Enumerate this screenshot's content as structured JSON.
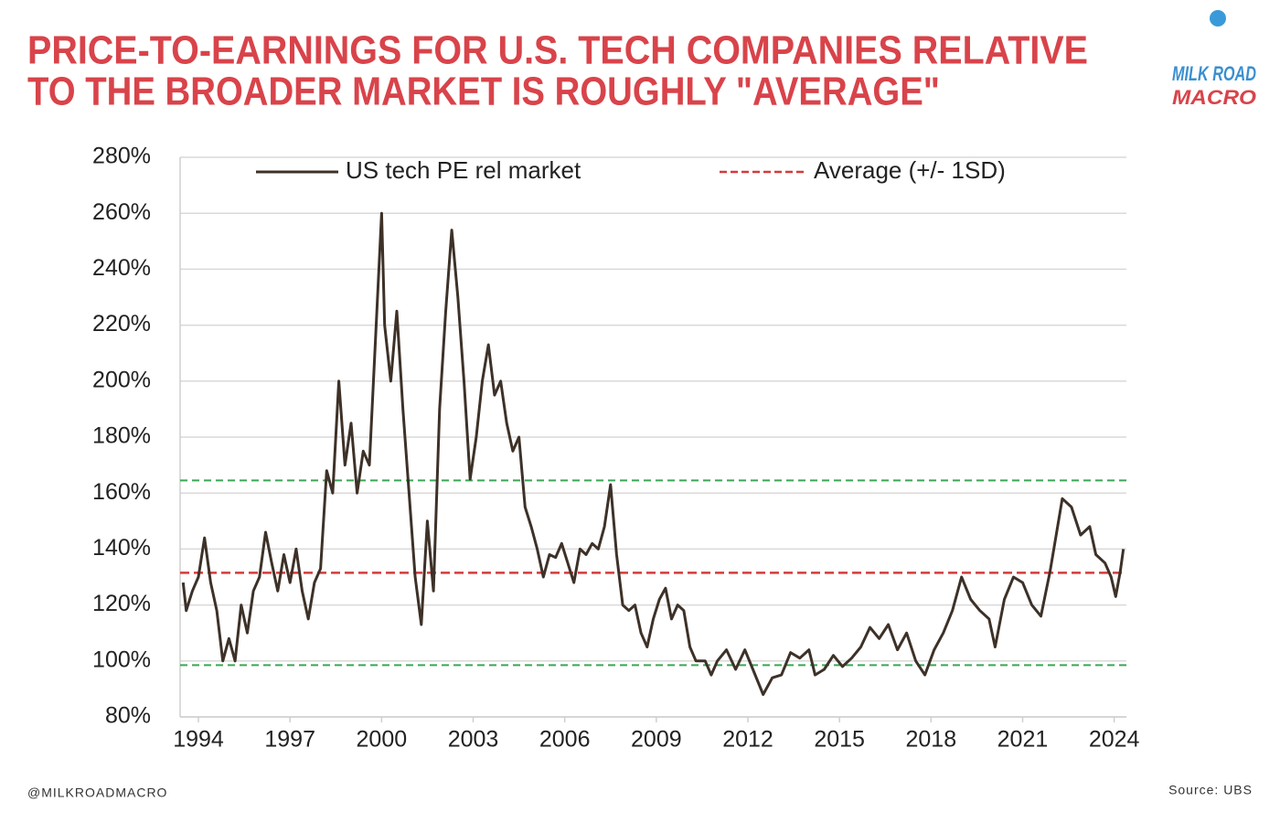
{
  "chart_data": {
    "type": "line",
    "title": [
      "PRICE-TO-EARNINGS FOR U.S. TECH COMPANIES RELATIVE",
      "TO THE BROADER MARKET IS ROUGHLY \"AVERAGE\""
    ],
    "x": [
      1993.5,
      1993.6,
      1993.8,
      1994.0,
      1994.2,
      1994.4,
      1994.6,
      1994.8,
      1995.0,
      1995.2,
      1995.4,
      1995.6,
      1995.8,
      1996.0,
      1996.2,
      1996.4,
      1996.6,
      1996.8,
      1997.0,
      1997.2,
      1997.4,
      1997.6,
      1997.8,
      1998.0,
      1998.2,
      1998.4,
      1998.6,
      1998.8,
      1999.0,
      1999.2,
      1999.4,
      1999.6,
      1999.8,
      2000.0,
      2000.1,
      2000.3,
      2000.5,
      2000.7,
      2000.9,
      2001.1,
      2001.3,
      2001.5,
      2001.7,
      2001.9,
      2002.1,
      2002.3,
      2002.5,
      2002.7,
      2002.9,
      2003.1,
      2003.3,
      2003.5,
      2003.7,
      2003.9,
      2004.1,
      2004.3,
      2004.5,
      2004.7,
      2004.9,
      2005.1,
      2005.3,
      2005.5,
      2005.7,
      2005.9,
      2006.1,
      2006.3,
      2006.5,
      2006.7,
      2006.9,
      2007.1,
      2007.3,
      2007.5,
      2007.7,
      2007.9,
      2008.1,
      2008.3,
      2008.5,
      2008.7,
      2008.9,
      2009.1,
      2009.3,
      2009.5,
      2009.7,
      2009.9,
      2010.1,
      2010.3,
      2010.6,
      2010.8,
      2011.0,
      2011.3,
      2011.6,
      2011.9,
      2012.2,
      2012.5,
      2012.8,
      2013.1,
      2013.4,
      2013.7,
      2014.0,
      2014.2,
      2014.5,
      2014.8,
      2015.1,
      2015.4,
      2015.7,
      2016.0,
      2016.3,
      2016.6,
      2016.9,
      2017.2,
      2017.5,
      2017.8,
      2018.1,
      2018.4,
      2018.7,
      2019.0,
      2019.3,
      2019.6,
      2019.9,
      2020.1,
      2020.4,
      2020.7,
      2021.0,
      2021.3,
      2021.6,
      2021.9,
      2022.1,
      2022.3,
      2022.6,
      2022.9,
      2023.2,
      2023.4,
      2023.7,
      2023.9,
      2024.05,
      2024.2,
      2024.3
    ],
    "series": [
      {
        "name": "US tech PE rel market",
        "color": "#3d3128",
        "values": [
          128,
          118,
          125,
          130,
          144,
          128,
          118,
          100,
          108,
          100,
          120,
          110,
          125,
          130,
          146,
          135,
          125,
          138,
          128,
          140,
          125,
          115,
          128,
          133,
          168,
          160,
          200,
          170,
          185,
          160,
          175,
          170,
          215,
          260,
          220,
          200,
          225,
          190,
          160,
          130,
          113,
          150,
          125,
          190,
          225,
          254,
          230,
          200,
          165,
          180,
          200,
          213,
          195,
          200,
          185,
          175,
          180,
          155,
          148,
          140,
          130,
          138,
          137,
          142,
          135,
          128,
          140,
          138,
          142,
          140,
          148,
          163,
          138,
          120,
          118,
          120,
          110,
          105,
          115,
          122,
          126,
          115,
          120,
          118,
          105,
          100,
          100,
          95,
          100,
          104,
          97,
          104,
          96,
          88,
          94,
          95,
          103,
          101,
          104,
          95,
          97,
          102,
          98,
          101,
          105,
          112,
          108,
          113,
          104,
          110,
          100,
          95,
          104,
          110,
          118,
          130,
          122,
          118,
          115,
          105,
          122,
          130,
          128,
          120,
          116,
          132,
          145,
          158,
          155,
          145,
          148,
          138,
          135,
          130,
          123,
          132,
          140
        ]
      }
    ],
    "reference": {
      "name": "Average (+/- 1SD)",
      "color": "#d63a3a",
      "average": 131.5,
      "band_color": "#3aa655",
      "band": [
        98.5,
        164.5
      ]
    },
    "xlim": [
      1993.4,
      2024.4
    ],
    "xticks": [
      1994,
      1997,
      2000,
      2003,
      2006,
      2009,
      2012,
      2015,
      2018,
      2021,
      2024
    ],
    "ylim": [
      80,
      280
    ],
    "yticks": [
      {
        "value": 80,
        "label": "80%"
      },
      {
        "value": 100,
        "label": "100%"
      },
      {
        "value": 120,
        "label": "120%"
      },
      {
        "value": 140,
        "label": "140%"
      },
      {
        "value": 160,
        "label": "160%"
      },
      {
        "value": 180,
        "label": "180%"
      },
      {
        "value": 200,
        "label": "200%"
      },
      {
        "value": 220,
        "label": "220%"
      },
      {
        "value": 240,
        "label": "240%"
      },
      {
        "value": 260,
        "label": "260%"
      },
      {
        "value": 280,
        "label": "280%"
      }
    ],
    "grid": true
  },
  "logo": [
    "MILK ROAD",
    "MACRO"
  ],
  "footer": {
    "handle": "@MILKROADMACRO",
    "source": "Source: UBS"
  }
}
